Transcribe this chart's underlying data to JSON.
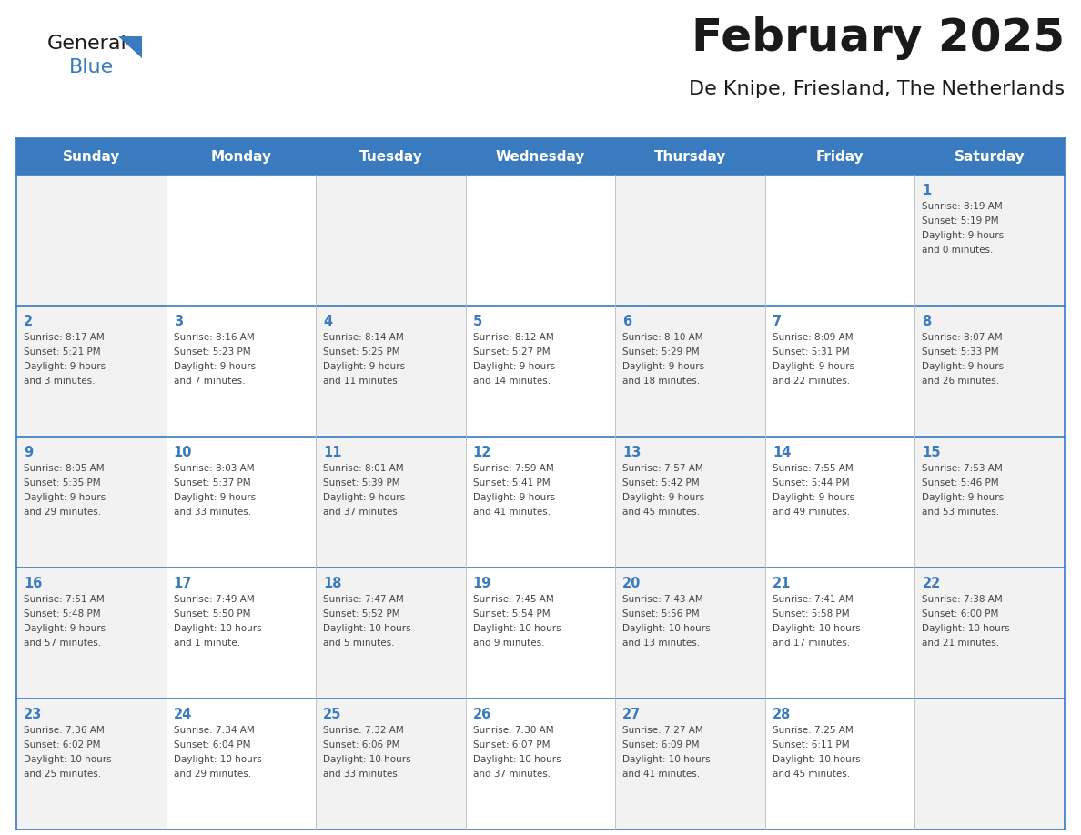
{
  "title": "February 2025",
  "subtitle": "De Knipe, Friesland, The Netherlands",
  "days_of_week": [
    "Sunday",
    "Monday",
    "Tuesday",
    "Wednesday",
    "Thursday",
    "Friday",
    "Saturday"
  ],
  "header_bg_color": "#3a7bbf",
  "header_text_color": "#ffffff",
  "cell_bg_color_even": "#f2f2f2",
  "cell_bg_color_odd": "#ffffff",
  "grid_line_color": "#3a7bbf",
  "day_number_color": "#3a7bbf",
  "cell_text_color": "#444444",
  "title_color": "#1a1a1a",
  "subtitle_color": "#1a1a1a",
  "logo_general_color": "#1a1a1a",
  "logo_blue_color": "#3a7bbf",
  "logo_triangle_color": "#3a7bbf",
  "calendar_data": [
    [
      null,
      null,
      null,
      null,
      null,
      null,
      {
        "day": "1",
        "sunrise": "8:19 AM",
        "sunset": "5:19 PM",
        "dl1": "Daylight: 9 hours",
        "dl2": "and 0 minutes."
      }
    ],
    [
      {
        "day": "2",
        "sunrise": "8:17 AM",
        "sunset": "5:21 PM",
        "dl1": "Daylight: 9 hours",
        "dl2": "and 3 minutes."
      },
      {
        "day": "3",
        "sunrise": "8:16 AM",
        "sunset": "5:23 PM",
        "dl1": "Daylight: 9 hours",
        "dl2": "and 7 minutes."
      },
      {
        "day": "4",
        "sunrise": "8:14 AM",
        "sunset": "5:25 PM",
        "dl1": "Daylight: 9 hours",
        "dl2": "and 11 minutes."
      },
      {
        "day": "5",
        "sunrise": "8:12 AM",
        "sunset": "5:27 PM",
        "dl1": "Daylight: 9 hours",
        "dl2": "and 14 minutes."
      },
      {
        "day": "6",
        "sunrise": "8:10 AM",
        "sunset": "5:29 PM",
        "dl1": "Daylight: 9 hours",
        "dl2": "and 18 minutes."
      },
      {
        "day": "7",
        "sunrise": "8:09 AM",
        "sunset": "5:31 PM",
        "dl1": "Daylight: 9 hours",
        "dl2": "and 22 minutes."
      },
      {
        "day": "8",
        "sunrise": "8:07 AM",
        "sunset": "5:33 PM",
        "dl1": "Daylight: 9 hours",
        "dl2": "and 26 minutes."
      }
    ],
    [
      {
        "day": "9",
        "sunrise": "8:05 AM",
        "sunset": "5:35 PM",
        "dl1": "Daylight: 9 hours",
        "dl2": "and 29 minutes."
      },
      {
        "day": "10",
        "sunrise": "8:03 AM",
        "sunset": "5:37 PM",
        "dl1": "Daylight: 9 hours",
        "dl2": "and 33 minutes."
      },
      {
        "day": "11",
        "sunrise": "8:01 AM",
        "sunset": "5:39 PM",
        "dl1": "Daylight: 9 hours",
        "dl2": "and 37 minutes."
      },
      {
        "day": "12",
        "sunrise": "7:59 AM",
        "sunset": "5:41 PM",
        "dl1": "Daylight: 9 hours",
        "dl2": "and 41 minutes."
      },
      {
        "day": "13",
        "sunrise": "7:57 AM",
        "sunset": "5:42 PM",
        "dl1": "Daylight: 9 hours",
        "dl2": "and 45 minutes."
      },
      {
        "day": "14",
        "sunrise": "7:55 AM",
        "sunset": "5:44 PM",
        "dl1": "Daylight: 9 hours",
        "dl2": "and 49 minutes."
      },
      {
        "day": "15",
        "sunrise": "7:53 AM",
        "sunset": "5:46 PM",
        "dl1": "Daylight: 9 hours",
        "dl2": "and 53 minutes."
      }
    ],
    [
      {
        "day": "16",
        "sunrise": "7:51 AM",
        "sunset": "5:48 PM",
        "dl1": "Daylight: 9 hours",
        "dl2": "and 57 minutes."
      },
      {
        "day": "17",
        "sunrise": "7:49 AM",
        "sunset": "5:50 PM",
        "dl1": "Daylight: 10 hours",
        "dl2": "and 1 minute."
      },
      {
        "day": "18",
        "sunrise": "7:47 AM",
        "sunset": "5:52 PM",
        "dl1": "Daylight: 10 hours",
        "dl2": "and 5 minutes."
      },
      {
        "day": "19",
        "sunrise": "7:45 AM",
        "sunset": "5:54 PM",
        "dl1": "Daylight: 10 hours",
        "dl2": "and 9 minutes."
      },
      {
        "day": "20",
        "sunrise": "7:43 AM",
        "sunset": "5:56 PM",
        "dl1": "Daylight: 10 hours",
        "dl2": "and 13 minutes."
      },
      {
        "day": "21",
        "sunrise": "7:41 AM",
        "sunset": "5:58 PM",
        "dl1": "Daylight: 10 hours",
        "dl2": "and 17 minutes."
      },
      {
        "day": "22",
        "sunrise": "7:38 AM",
        "sunset": "6:00 PM",
        "dl1": "Daylight: 10 hours",
        "dl2": "and 21 minutes."
      }
    ],
    [
      {
        "day": "23",
        "sunrise": "7:36 AM",
        "sunset": "6:02 PM",
        "dl1": "Daylight: 10 hours",
        "dl2": "and 25 minutes."
      },
      {
        "day": "24",
        "sunrise": "7:34 AM",
        "sunset": "6:04 PM",
        "dl1": "Daylight: 10 hours",
        "dl2": "and 29 minutes."
      },
      {
        "day": "25",
        "sunrise": "7:32 AM",
        "sunset": "6:06 PM",
        "dl1": "Daylight: 10 hours",
        "dl2": "and 33 minutes."
      },
      {
        "day": "26",
        "sunrise": "7:30 AM",
        "sunset": "6:07 PM",
        "dl1": "Daylight: 10 hours",
        "dl2": "and 37 minutes."
      },
      {
        "day": "27",
        "sunrise": "7:27 AM",
        "sunset": "6:09 PM",
        "dl1": "Daylight: 10 hours",
        "dl2": "and 41 minutes."
      },
      {
        "day": "28",
        "sunrise": "7:25 AM",
        "sunset": "6:11 PM",
        "dl1": "Daylight: 10 hours",
        "dl2": "and 45 minutes."
      },
      null
    ]
  ]
}
